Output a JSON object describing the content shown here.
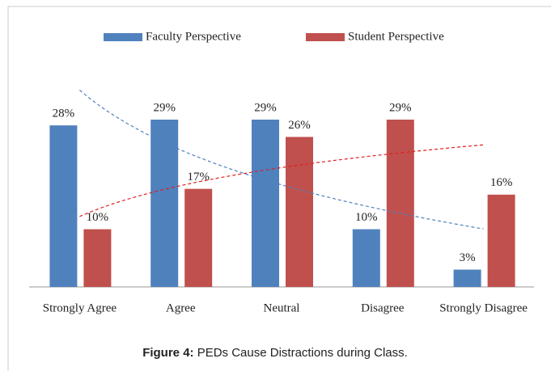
{
  "chart_data": {
    "type": "bar",
    "categories": [
      "Strongly Agree",
      "Agree",
      "Neutral",
      "Disagree",
      "Strongly Disagree"
    ],
    "series": [
      {
        "name": "Faculty Perspective",
        "color": "#4f81bd",
        "values": [
          28,
          29,
          29,
          10,
          3
        ],
        "value_labels": [
          "28%",
          "29%",
          "29%",
          "10%",
          "3%"
        ],
        "trendline_color": "#4f81bd"
      },
      {
        "name": "Student Perspective",
        "color": "#c0504d",
        "values": [
          10,
          17,
          26,
          29,
          16
        ],
        "value_labels": [
          "10%",
          "17%",
          "26%",
          "29%",
          "16%"
        ],
        "trendline_color": "#e02020"
      }
    ],
    "trendline": "logarithmic",
    "legend": "top",
    "caption": {
      "label": "Figure 4:",
      "text": "PEDs Cause Distractions during Class."
    }
  }
}
